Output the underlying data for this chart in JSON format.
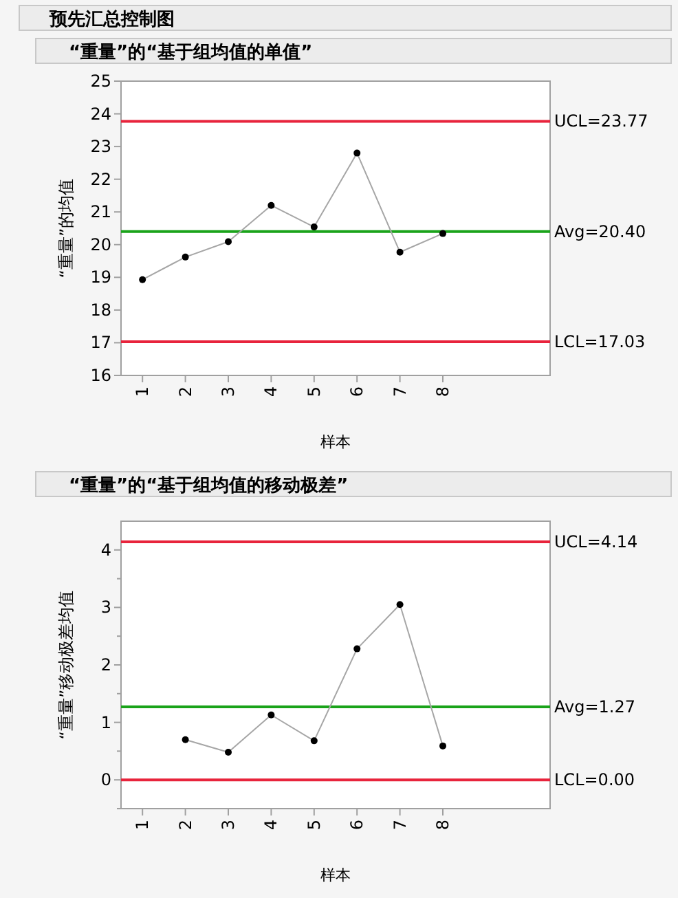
{
  "chart_data": [
    {
      "type": "line",
      "title": "预先汇总控制图",
      "subtitle": "“重量”的“基于组均值的单值”",
      "xlabel": "样本",
      "ylabel": "“重量”的均值",
      "x": [
        1,
        2,
        3,
        4,
        5,
        6,
        7,
        8
      ],
      "xlim": [
        0.5,
        10.5
      ],
      "xticks": [
        1,
        2,
        3,
        4,
        5,
        6,
        7,
        8
      ],
      "ylim": [
        16,
        25
      ],
      "yticks": [
        16,
        17,
        18,
        19,
        20,
        21,
        22,
        23,
        24,
        25
      ],
      "marker": "circle",
      "line_style": "solid",
      "grid": false,
      "series": [
        {
          "color": "#a6a6a6",
          "values": [
            18.93,
            19.62,
            20.09,
            21.2,
            20.54,
            22.8,
            19.77,
            20.34
          ]
        }
      ],
      "ref_lines": [
        {
          "axis": "y",
          "value": 23.77,
          "label": "UCL=23.77",
          "color": "#e8243c"
        },
        {
          "axis": "y",
          "value": 20.4,
          "label": "Avg=20.40",
          "color": "#1aa31a"
        },
        {
          "axis": "y",
          "value": 17.03,
          "label": "LCL=17.03",
          "color": "#e8243c"
        }
      ]
    },
    {
      "type": "line",
      "title": "“重量”的“基于组均值的移动极差”",
      "xlabel": "样本",
      "ylabel": "“重量”移动极差均值",
      "xlim": [
        0.5,
        10.5
      ],
      "xticks": [
        1,
        2,
        3,
        4,
        5,
        6,
        7,
        8
      ],
      "ylim": [
        -0.5,
        4.5
      ],
      "yticks": [
        {
          "value": -0.5,
          "label": null
        },
        0,
        {
          "value": 0.5,
          "label": null
        },
        1,
        {
          "value": 1.5,
          "label": null
        },
        2,
        {
          "value": 2.5,
          "label": null
        },
        3,
        {
          "value": 3.5,
          "label": null
        },
        4
      ],
      "marker": "circle",
      "line_style": "solid",
      "grid": false,
      "series": [
        {
          "color": "#a6a6a6",
          "x": [
            2,
            3,
            4,
            5,
            6,
            7,
            8
          ],
          "values": [
            0.7,
            0.48,
            1.13,
            0.68,
            2.28,
            3.05,
            0.59
          ]
        }
      ],
      "ref_lines": [
        {
          "axis": "y",
          "value": 4.14,
          "label": "UCL=4.14",
          "color": "#e8243c"
        },
        {
          "axis": "y",
          "value": 1.27,
          "label": "Avg=1.27",
          "color": "#1aa31a"
        },
        {
          "axis": "y",
          "value": 0,
          "label": "LCL=0.00",
          "color": "#e8243c"
        }
      ]
    }
  ]
}
